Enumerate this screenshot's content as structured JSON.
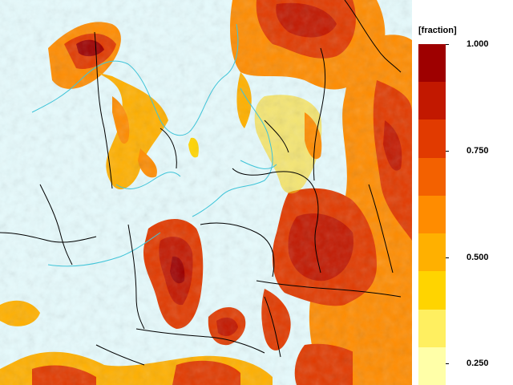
{
  "legend": {
    "unit": "[fraction]",
    "ticks": [
      {
        "label": "1.000",
        "value": 1.0
      },
      {
        "label": "0.750",
        "value": 0.75
      },
      {
        "label": "0.500",
        "value": 0.5
      },
      {
        "label": "0.250",
        "value": 0.25
      }
    ],
    "bins": [
      {
        "color": "#9e0000"
      },
      {
        "color": "#c21800"
      },
      {
        "color": "#e13a00"
      },
      {
        "color": "#f36100"
      },
      {
        "color": "#ff8c00"
      },
      {
        "color": "#ffb000"
      },
      {
        "color": "#ffd400"
      },
      {
        "color": "#ffef60"
      },
      {
        "color": "#ffffa8"
      }
    ]
  },
  "colors": {
    "water": "#e6fbfd",
    "low": "#eafcfd",
    "border": "#000000",
    "coast": "#40c4d8"
  }
}
